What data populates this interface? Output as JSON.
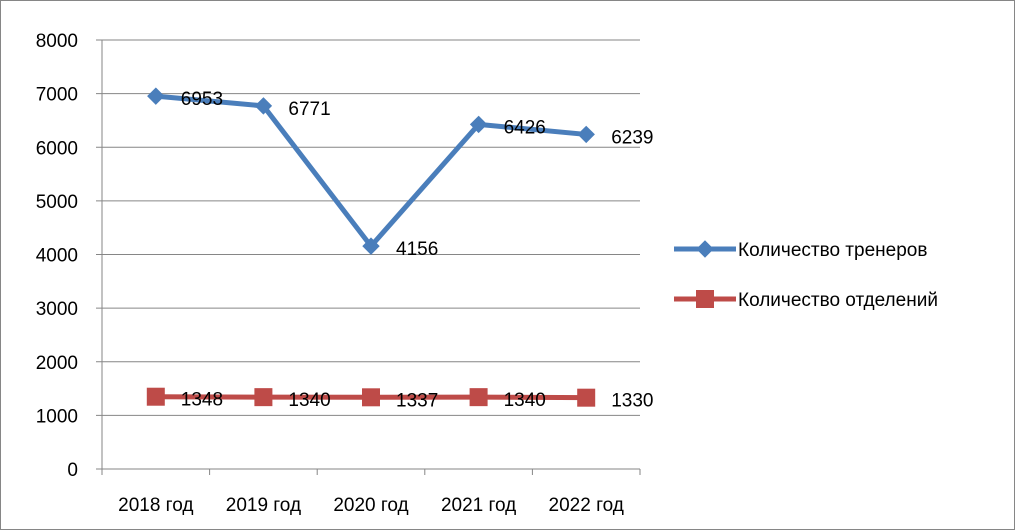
{
  "chart_data": {
    "type": "line",
    "categories": [
      "2018 год",
      "2019 год",
      "2020 год",
      "2021 год",
      "2022 год"
    ],
    "series": [
      {
        "name": "Количество тренеров",
        "values": [
          6953,
          6771,
          4156,
          6426,
          6239
        ],
        "color": "#4a7ebb",
        "marker": "diamond"
      },
      {
        "name": "Количество отделений",
        "values": [
          1348,
          1340,
          1337,
          1340,
          1330
        ],
        "color": "#be4b48",
        "marker": "square"
      }
    ],
    "ylim": [
      0,
      8000
    ],
    "yticks": [
      0,
      1000,
      2000,
      3000,
      4000,
      5000,
      6000,
      7000,
      8000
    ],
    "grid": "horizontal",
    "legend": "right",
    "data_labels": true
  }
}
